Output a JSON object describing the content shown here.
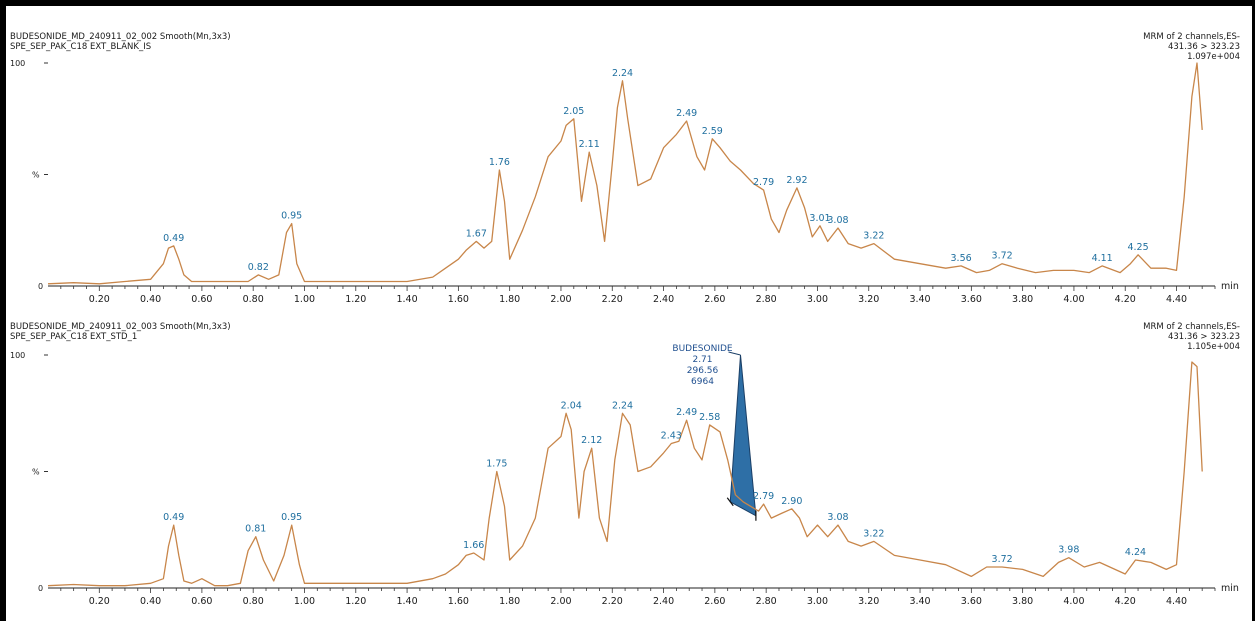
{
  "chart_data": [
    {
      "type": "line",
      "header_left_1": "BUDESONIDE_MD_240911_02_002 Smooth(Mn,3x3)",
      "header_left_2": "SPE_SEP_PAK_C18 EXT_BLANK_IS",
      "header_right_1": "MRM of 2 channels,ES-",
      "header_right_2": "431.36 > 323.23",
      "header_right_3": "1.097e+004",
      "ylabel": "%",
      "y_top_label": "100",
      "y_zero_label": "0",
      "xlabel": "min",
      "xlim": [
        0,
        4.55
      ],
      "ylim": [
        0,
        100
      ],
      "x_ticks": [
        "0.20",
        "0.40",
        "0.60",
        "0.80",
        "1.00",
        "1.20",
        "1.40",
        "1.60",
        "1.80",
        "2.00",
        "2.20",
        "2.40",
        "2.60",
        "2.80",
        "3.00",
        "3.20",
        "3.40",
        "3.60",
        "3.80",
        "4.00",
        "4.20",
        "4.40"
      ],
      "line_color": "#c8864a",
      "x": [
        0.0,
        0.1,
        0.2,
        0.3,
        0.4,
        0.45,
        0.47,
        0.49,
        0.51,
        0.53,
        0.56,
        0.6,
        0.7,
        0.78,
        0.82,
        0.86,
        0.9,
        0.93,
        0.95,
        0.97,
        1.0,
        1.1,
        1.2,
        1.3,
        1.4,
        1.5,
        1.55,
        1.6,
        1.63,
        1.67,
        1.7,
        1.73,
        1.76,
        1.78,
        1.8,
        1.85,
        1.9,
        1.95,
        2.0,
        2.02,
        2.05,
        2.08,
        2.11,
        2.14,
        2.17,
        2.2,
        2.22,
        2.24,
        2.26,
        2.3,
        2.35,
        2.4,
        2.45,
        2.49,
        2.53,
        2.56,
        2.59,
        2.62,
        2.66,
        2.7,
        2.75,
        2.79,
        2.82,
        2.85,
        2.88,
        2.92,
        2.95,
        2.98,
        3.01,
        3.04,
        3.08,
        3.12,
        3.17,
        3.22,
        3.3,
        3.4,
        3.5,
        3.56,
        3.62,
        3.67,
        3.72,
        3.78,
        3.85,
        3.92,
        4.0,
        4.06,
        4.11,
        4.18,
        4.22,
        4.25,
        4.3,
        4.36,
        4.4,
        4.43,
        4.46,
        4.48,
        4.5
      ],
      "y": [
        1,
        1.5,
        1,
        2,
        3,
        10,
        17,
        18,
        12,
        5,
        2,
        2,
        2,
        2,
        5,
        3,
        5,
        24,
        28,
        10,
        2,
        2,
        2,
        2,
        2,
        4,
        8,
        12,
        16,
        20,
        17,
        20,
        52,
        38,
        12,
        25,
        40,
        58,
        65,
        72,
        75,
        38,
        60,
        45,
        20,
        55,
        80,
        92,
        75,
        45,
        48,
        62,
        68,
        74,
        58,
        52,
        66,
        62,
        56,
        52,
        46,
        43,
        30,
        24,
        34,
        44,
        35,
        22,
        27,
        20,
        26,
        19,
        17,
        19,
        12,
        10,
        8,
        9,
        6,
        7,
        10,
        8,
        6,
        7,
        7,
        6,
        9,
        6,
        10,
        14,
        8,
        8,
        7,
        40,
        85,
        100,
        70
      ],
      "peak_labels": [
        {
          "x": 0.49,
          "y": 18,
          "text": "0.49"
        },
        {
          "x": 0.82,
          "y": 5,
          "text": "0.82"
        },
        {
          "x": 0.95,
          "y": 28,
          "text": "0.95"
        },
        {
          "x": 1.67,
          "y": 20,
          "text": "1.67"
        },
        {
          "x": 1.76,
          "y": 52,
          "text": "1.76"
        },
        {
          "x": 2.05,
          "y": 75,
          "text": "2.05"
        },
        {
          "x": 2.11,
          "y": 60,
          "text": "2.11"
        },
        {
          "x": 2.24,
          "y": 92,
          "text": "2.24"
        },
        {
          "x": 2.49,
          "y": 74,
          "text": "2.49"
        },
        {
          "x": 2.59,
          "y": 66,
          "text": "2.59"
        },
        {
          "x": 2.79,
          "y": 43,
          "text": "2.79"
        },
        {
          "x": 2.92,
          "y": 44,
          "text": "2.92"
        },
        {
          "x": 3.01,
          "y": 27,
          "text": "3.01"
        },
        {
          "x": 3.08,
          "y": 26,
          "text": "3.08"
        },
        {
          "x": 3.22,
          "y": 19,
          "text": "3.22"
        },
        {
          "x": 3.56,
          "y": 9,
          "text": "3.56"
        },
        {
          "x": 3.72,
          "y": 10,
          "text": "3.72"
        },
        {
          "x": 4.11,
          "y": 9,
          "text": "4.11"
        },
        {
          "x": 4.25,
          "y": 14,
          "text": "4.25"
        }
      ]
    },
    {
      "type": "line",
      "header_left_1": "BUDESONIDE_MD_240911_02_003 Smooth(Mn,3x3)",
      "header_left_2": "SPE_SEP_PAK_C18 EXT_STD_1",
      "header_right_1": "MRM of 2 channels,ES-",
      "header_right_2": "431.36 > 323.23",
      "header_right_3": "1.105e+004",
      "ylabel": "%",
      "y_top_label": "100",
      "y_zero_label": "0",
      "xlabel": "min",
      "xlim": [
        0,
        4.55
      ],
      "ylim": [
        0,
        100
      ],
      "x_ticks": [
        "0.20",
        "0.40",
        "0.60",
        "0.80",
        "1.00",
        "1.20",
        "1.40",
        "1.60",
        "1.80",
        "2.00",
        "2.20",
        "2.40",
        "2.60",
        "2.80",
        "3.00",
        "3.20",
        "3.40",
        "3.60",
        "3.80",
        "4.00",
        "4.20",
        "4.40"
      ],
      "line_color": "#c8864a",
      "x": [
        0.0,
        0.1,
        0.2,
        0.3,
        0.4,
        0.45,
        0.47,
        0.49,
        0.51,
        0.53,
        0.56,
        0.6,
        0.65,
        0.7,
        0.75,
        0.78,
        0.81,
        0.84,
        0.88,
        0.92,
        0.95,
        0.98,
        1.0,
        1.1,
        1.2,
        1.3,
        1.4,
        1.5,
        1.55,
        1.6,
        1.63,
        1.66,
        1.7,
        1.72,
        1.75,
        1.78,
        1.8,
        1.85,
        1.9,
        1.95,
        2.0,
        2.02,
        2.04,
        2.07,
        2.09,
        2.12,
        2.15,
        2.18,
        2.21,
        2.24,
        2.27,
        2.3,
        2.35,
        2.4,
        2.43,
        2.46,
        2.49,
        2.52,
        2.55,
        2.58,
        2.62,
        2.65,
        2.68,
        2.71,
        2.74,
        2.77,
        2.79,
        2.82,
        2.86,
        2.9,
        2.93,
        2.96,
        3.0,
        3.04,
        3.08,
        3.12,
        3.17,
        3.22,
        3.3,
        3.4,
        3.5,
        3.6,
        3.66,
        3.72,
        3.8,
        3.88,
        3.94,
        3.98,
        4.04,
        4.1,
        4.16,
        4.2,
        4.24,
        4.3,
        4.36,
        4.4,
        4.43,
        4.46,
        4.48,
        4.5
      ],
      "y": [
        1,
        1.5,
        1,
        1,
        2,
        4,
        18,
        27,
        14,
        3,
        2,
        4,
        1,
        1,
        2,
        16,
        22,
        12,
        3,
        14,
        27,
        10,
        2,
        2,
        2,
        2,
        2,
        4,
        6,
        10,
        14,
        15,
        12,
        30,
        50,
        35,
        12,
        18,
        30,
        60,
        65,
        75,
        68,
        30,
        50,
        60,
        30,
        20,
        55,
        75,
        70,
        50,
        52,
        58,
        62,
        63,
        72,
        60,
        55,
        70,
        67,
        55,
        40,
        37,
        35,
        33,
        36,
        30,
        32,
        34,
        30,
        22,
        27,
        22,
        27,
        20,
        18,
        20,
        14,
        12,
        10,
        5,
        9,
        9,
        8,
        5,
        11,
        13,
        9,
        11,
        8,
        6,
        12,
        11,
        8,
        10,
        50,
        97,
        95,
        50
      ],
      "peak_labels": [
        {
          "x": 0.49,
          "y": 27,
          "text": "0.49"
        },
        {
          "x": 0.81,
          "y": 22,
          "text": "0.81"
        },
        {
          "x": 0.95,
          "y": 27,
          "text": "0.95"
        },
        {
          "x": 1.66,
          "y": 15,
          "text": "1.66"
        },
        {
          "x": 1.75,
          "y": 50,
          "text": "1.75"
        },
        {
          "x": 2.04,
          "y": 75,
          "text": "2.04"
        },
        {
          "x": 2.12,
          "y": 60,
          "text": "2.12"
        },
        {
          "x": 2.24,
          "y": 75,
          "text": "2.24"
        },
        {
          "x": 2.43,
          "y": 62,
          "text": "2.43"
        },
        {
          "x": 2.49,
          "y": 72,
          "text": "2.49"
        },
        {
          "x": 2.58,
          "y": 70,
          "text": "2.58"
        },
        {
          "x": 2.79,
          "y": 36,
          "text": "2.79"
        },
        {
          "x": 2.9,
          "y": 34,
          "text": "2.90"
        },
        {
          "x": 3.08,
          "y": 27,
          "text": "3.08"
        },
        {
          "x": 3.22,
          "y": 20,
          "text": "3.22"
        },
        {
          "x": 3.72,
          "y": 9,
          "text": "3.72"
        },
        {
          "x": 3.98,
          "y": 13,
          "text": "3.98"
        },
        {
          "x": 4.24,
          "y": 12,
          "text": "4.24"
        }
      ],
      "integrated_peak": {
        "name": "BUDESONIDE",
        "rt": "2.71",
        "area": "296.56",
        "height": "6964",
        "fill_color": "#2e6fa6",
        "start_x": 2.66,
        "start_y": 37,
        "apex_x": 2.7,
        "apex_y": 100,
        "end_x": 2.76,
        "end_y": 31
      }
    }
  ]
}
